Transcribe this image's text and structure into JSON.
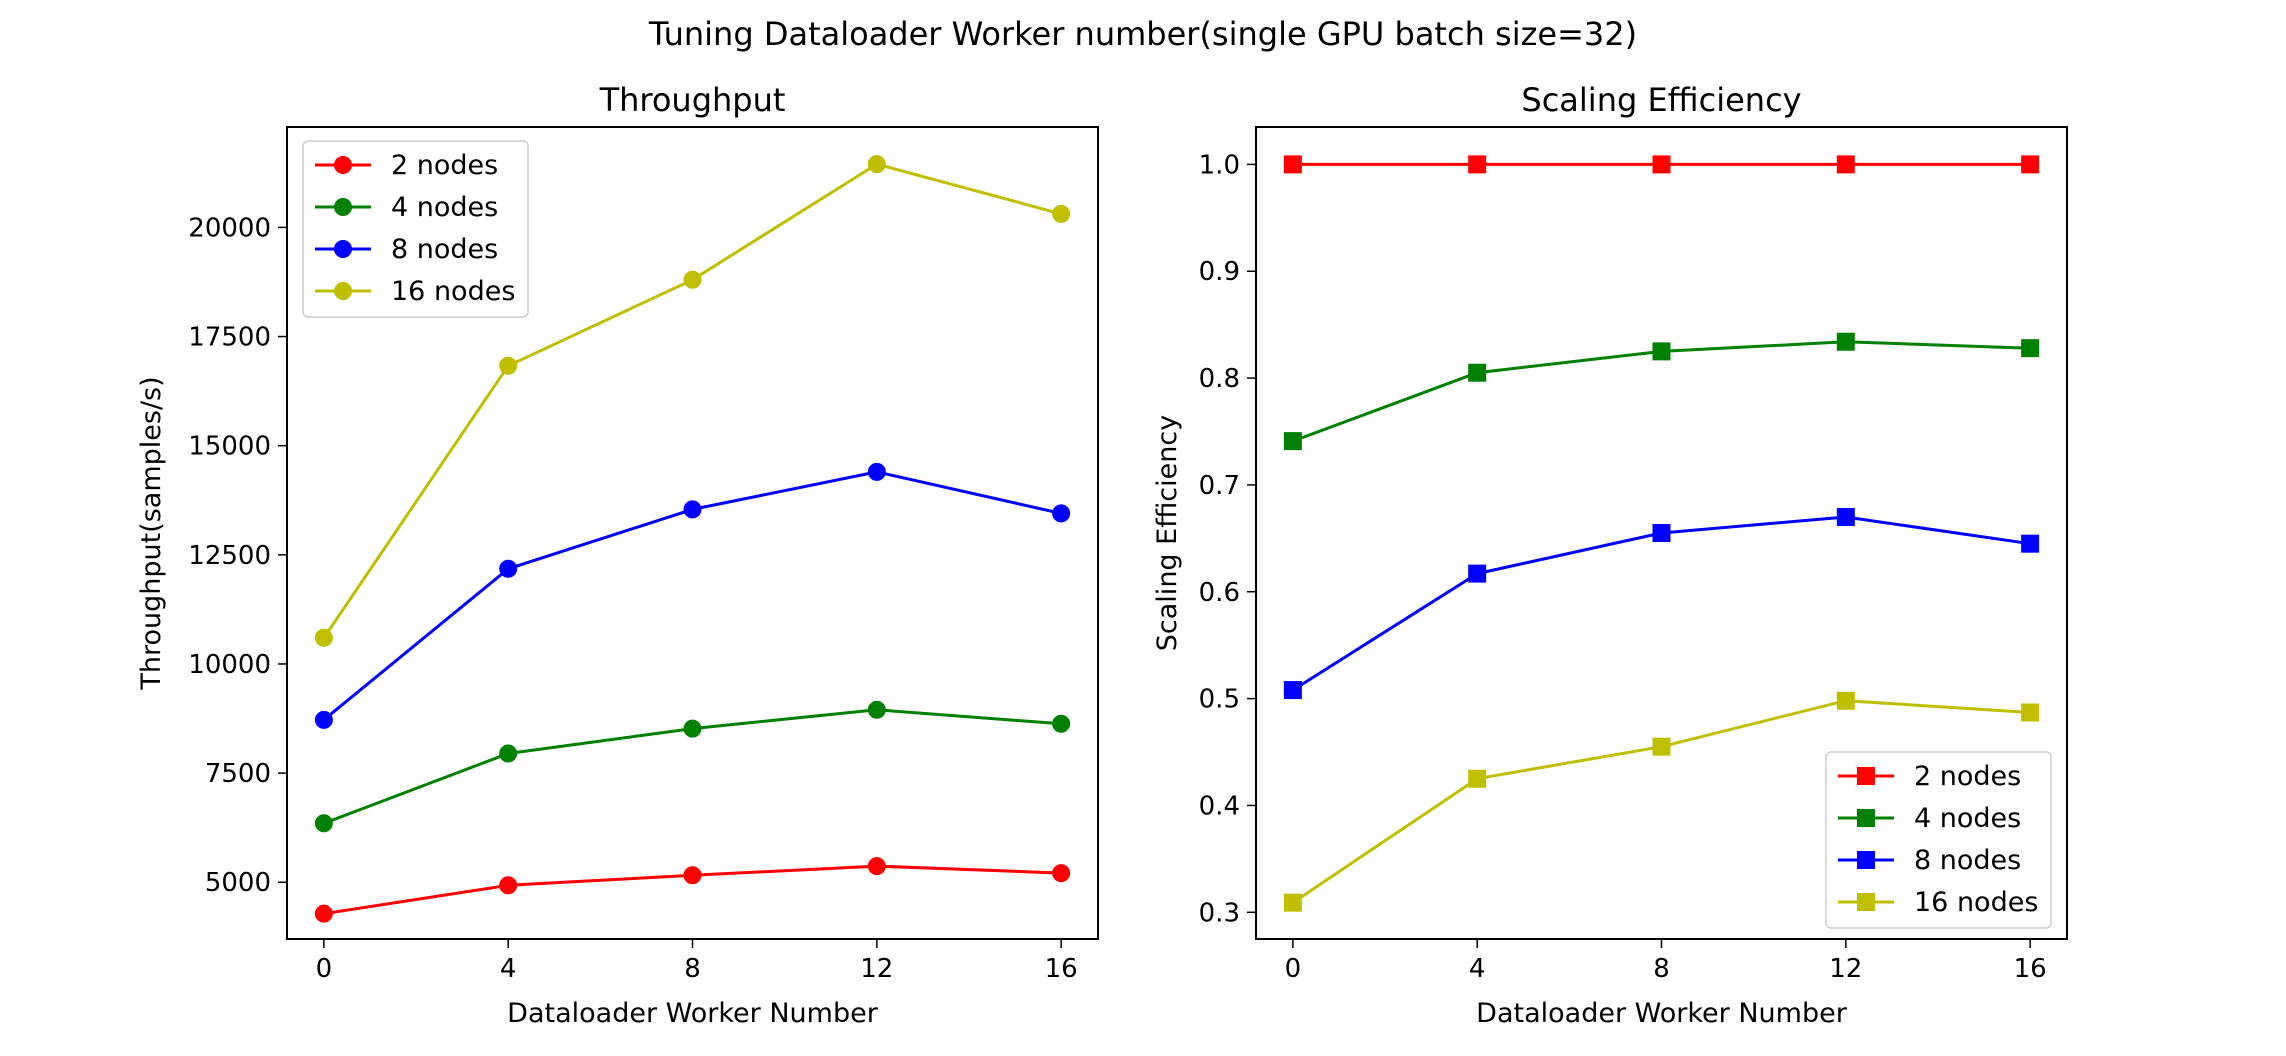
{
  "figure": {
    "suptitle": "Tuning Dataloader Worker number(single GPU batch size=32)"
  },
  "chart_data": [
    {
      "type": "line",
      "title": "Throughput",
      "xlabel": "Dataloader Worker Number",
      "ylabel": "Throughput(samples/s)",
      "x": [
        0,
        4,
        8,
        12,
        16
      ],
      "xticks": [
        0,
        4,
        8,
        12,
        16
      ],
      "xlim": [
        -0.8,
        16.8
      ],
      "yticks": [
        5000,
        7500,
        10000,
        12500,
        15000,
        17500,
        20000
      ],
      "ylim": [
        3700,
        22300
      ],
      "grid": false,
      "legend_position": "upper left",
      "marker": "circle",
      "series": [
        {
          "name": "2 nodes",
          "color": "#ff0000",
          "values": [
            4280,
            4930,
            5160,
            5370,
            5210
          ]
        },
        {
          "name": "4 nodes",
          "color": "#008000",
          "values": [
            6350,
            7950,
            8520,
            8950,
            8630
          ]
        },
        {
          "name": "8 nodes",
          "color": "#0000ff",
          "values": [
            8720,
            12180,
            13540,
            14400,
            13450
          ]
        },
        {
          "name": "16 nodes",
          "color": "#bfbf00",
          "values": [
            10600,
            16830,
            18800,
            21450,
            20310
          ]
        }
      ]
    },
    {
      "type": "line",
      "title": "Scaling Efficiency",
      "xlabel": "Dataloader Worker Number",
      "ylabel": "Scaling Efficiency",
      "x": [
        0,
        4,
        8,
        12,
        16
      ],
      "xticks": [
        0,
        4,
        8,
        12,
        16
      ],
      "xlim": [
        -0.8,
        16.8
      ],
      "yticks": [
        0.3,
        0.4,
        0.5,
        0.6,
        0.7,
        0.8,
        0.9,
        1.0
      ],
      "ylim": [
        0.275,
        1.035
      ],
      "grid": false,
      "legend_position": "lower right",
      "marker": "square",
      "series": [
        {
          "name": "2 nodes",
          "color": "#ff0000",
          "values": [
            1.0,
            1.0,
            1.0,
            1.0,
            1.0
          ]
        },
        {
          "name": "4 nodes",
          "color": "#008000",
          "values": [
            0.741,
            0.805,
            0.825,
            0.834,
            0.828
          ]
        },
        {
          "name": "8 nodes",
          "color": "#0000ff",
          "values": [
            0.508,
            0.617,
            0.655,
            0.67,
            0.645
          ]
        },
        {
          "name": "16 nodes",
          "color": "#bfbf00",
          "values": [
            0.309,
            0.425,
            0.455,
            0.498,
            0.487
          ]
        }
      ]
    }
  ]
}
